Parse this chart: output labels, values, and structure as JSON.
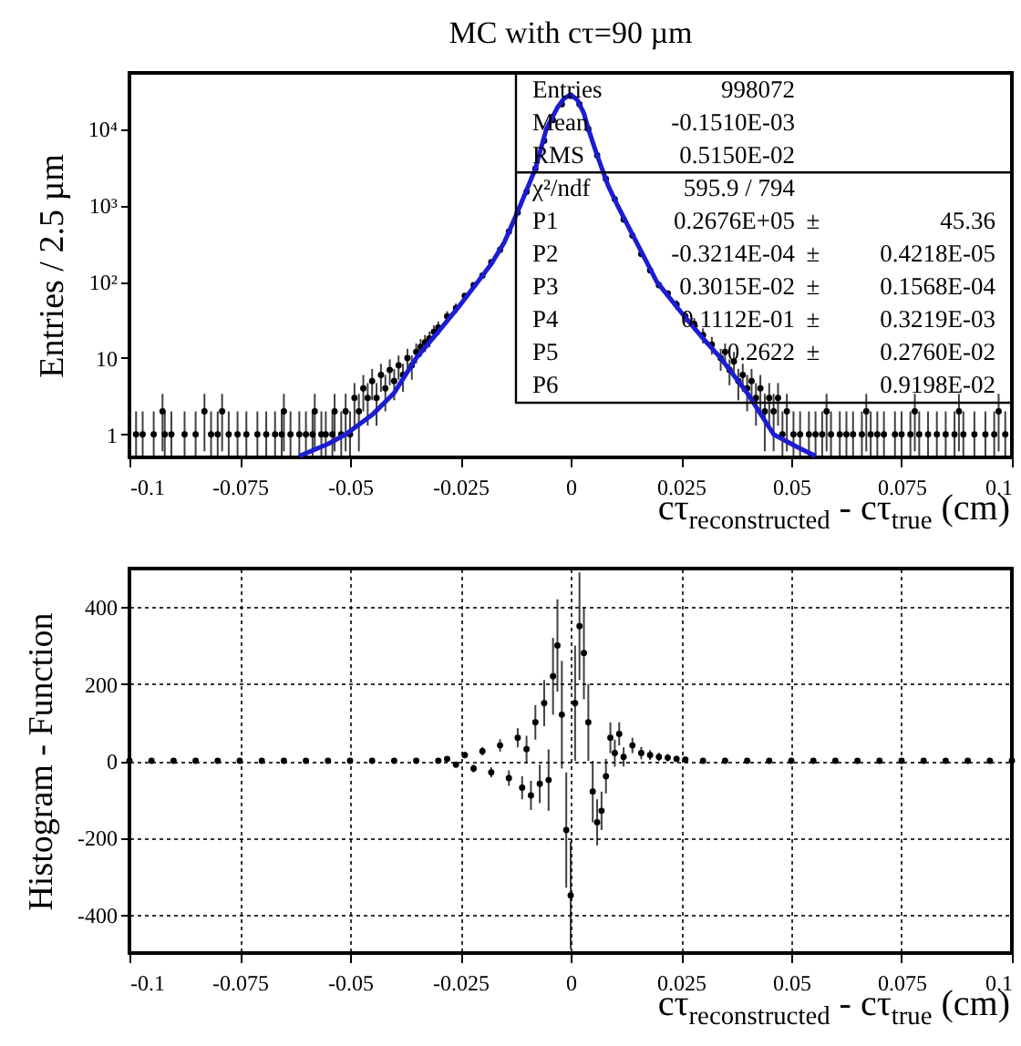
{
  "chart_data": [
    {
      "type": "scatter",
      "title": "MC with cτ=90 µm",
      "xlabel": "cτ$_{reconstructed}$ - cτ$_{true}$ (cm)",
      "ylabel": "Entries / 2.5 µm",
      "log": "y",
      "xlim": [
        -0.1,
        0.1
      ],
      "xticks": [
        -0.1,
        -0.075,
        -0.05,
        -0.025,
        0,
        0.025,
        0.05,
        0.075,
        0.1
      ],
      "ylim": [
        0.5,
        54000
      ],
      "yticks": [
        1,
        10,
        {
          "value": 100,
          "label": "10²"
        },
        {
          "value": 1000,
          "label": "10³"
        },
        {
          "value": 10000,
          "label": "10⁴"
        }
      ],
      "series": [
        {
          "type": "scatter",
          "marker": "circle",
          "color": "#000000",
          "x": [
            -0.0985,
            -0.097,
            -0.0945,
            -0.0925,
            -0.092,
            -0.0905,
            -0.0875,
            -0.085,
            -0.083,
            -0.0815,
            -0.08,
            -0.079,
            -0.0775,
            -0.0755,
            -0.0735,
            -0.071,
            -0.069,
            -0.067,
            -0.0655,
            -0.065,
            -0.0635,
            -0.0615,
            -0.06,
            -0.0585,
            -0.058,
            -0.0565,
            -0.0555,
            -0.054,
            -0.0535,
            -0.052,
            -0.051,
            -0.05,
            -0.049,
            -0.048,
            -0.047,
            -0.046,
            -0.045,
            -0.044,
            -0.043,
            -0.042,
            -0.041,
            -0.04,
            -0.039,
            -0.038,
            -0.037,
            -0.036,
            -0.035,
            -0.034,
            -0.033,
            -0.032,
            -0.031,
            -0.03,
            -0.028,
            -0.026,
            -0.024,
            -0.022,
            -0.02,
            -0.018,
            -0.016,
            -0.014,
            -0.012,
            -0.01,
            -0.008,
            -0.006,
            -0.004,
            -0.002,
            0,
            0.002,
            0.004,
            0.006,
            0.008,
            0.01,
            0.012,
            0.014,
            0.016,
            0.018,
            0.02,
            0.022,
            0.024,
            0.026,
            0.028,
            0.03,
            0.032,
            0.034,
            0.035,
            0.036,
            0.037,
            0.038,
            0.039,
            0.04,
            0.041,
            0.042,
            0.043,
            0.044,
            0.045,
            0.046,
            0.047,
            0.048,
            0.049,
            0.0505,
            0.052,
            0.054,
            0.0555,
            0.057,
            0.058,
            0.059,
            0.061,
            0.0625,
            0.064,
            0.066,
            0.067,
            0.068,
            0.0695,
            0.071,
            0.0735,
            0.075,
            0.077,
            0.078,
            0.079,
            0.081,
            0.083,
            0.085,
            0.087,
            0.088,
            0.089,
            0.0915,
            0.094,
            0.096,
            0.097,
            0.0985
          ],
          "values": [
            1,
            1,
            1,
            2,
            1,
            1,
            1,
            1,
            2,
            1,
            1,
            2,
            1,
            1,
            1,
            1,
            1,
            1,
            1,
            2,
            1,
            1,
            1,
            1,
            2,
            1,
            1,
            1,
            2,
            1,
            2,
            1,
            3,
            2,
            4,
            3,
            5,
            3,
            6,
            4,
            7,
            5,
            8,
            6,
            10,
            8,
            12,
            14,
            16,
            18,
            22,
            25,
            35,
            45,
            65,
            90,
            120,
            180,
            260,
            450,
            800,
            1500,
            3000,
            7000,
            13000,
            21000,
            27000,
            21000,
            10000,
            4500,
            2200,
            1200,
            650,
            400,
            230,
            140,
            90,
            70,
            50,
            35,
            28,
            20,
            15,
            10,
            12,
            7,
            9,
            5,
            6,
            4,
            5,
            3,
            4,
            2,
            3,
            2,
            3,
            1,
            2,
            1,
            1,
            1,
            1,
            1,
            2,
            1,
            1,
            1,
            1,
            1,
            2,
            1,
            1,
            1,
            1,
            1,
            1,
            2,
            1,
            1,
            1,
            1,
            1,
            2,
            1,
            1,
            1,
            1,
            2,
            1
          ],
          "errors": [
            [
              0.5,
              2
            ],
            [
              0.5,
              2
            ],
            [
              0.5,
              2
            ],
            [
              0.6,
              3.4
            ],
            [
              0.5,
              2
            ],
            [
              0.5,
              2
            ],
            [
              0.5,
              2
            ],
            [
              0.5,
              2
            ],
            [
              0.6,
              3.4
            ],
            [
              0.5,
              2
            ],
            [
              0.5,
              2
            ],
            [
              0.6,
              3.4
            ],
            [
              0.5,
              2
            ],
            [
              0.5,
              2
            ],
            [
              0.5,
              2
            ],
            [
              0.5,
              2
            ],
            [
              0.5,
              2
            ],
            [
              0.5,
              2
            ],
            [
              0.5,
              2
            ],
            [
              0.6,
              3.4
            ],
            [
              0.5,
              2
            ],
            [
              0.5,
              2
            ],
            [
              0.5,
              2
            ],
            [
              0.5,
              2
            ],
            [
              0.6,
              3.4
            ],
            [
              0.5,
              2
            ],
            [
              0.5,
              2
            ],
            [
              0.5,
              2
            ],
            [
              0.6,
              3.4
            ],
            [
              0.5,
              2
            ],
            [
              0.6,
              3.4
            ],
            [
              0.5,
              2
            ],
            1.7,
            [
              0.6,
              3.4
            ],
            2,
            1.7,
            2.2,
            1.7,
            2.4,
            2,
            2.6,
            2.2,
            2.8,
            2.4,
            3.2,
            2.8,
            3.5,
            3.7,
            4,
            4.2,
            4.7,
            5,
            5.9,
            6.7,
            null,
            null,
            null,
            null,
            null,
            null,
            null,
            null,
            null,
            null,
            null,
            null,
            null,
            null,
            null,
            null,
            null,
            null,
            null,
            null,
            null,
            null,
            null,
            null,
            7.1,
            5.9,
            5.3,
            4.5,
            3.9,
            3.2,
            3.5,
            2.6,
            3,
            2.2,
            2.4,
            2,
            2.2,
            1.7,
            2,
            [
              0.6,
              3.4
            ],
            1.7,
            [
              0.6,
              3.4
            ],
            1.7,
            [
              0.5,
              2
            ],
            [
              0.6,
              3.4
            ],
            [
              0.5,
              2
            ],
            [
              0.5,
              2
            ],
            [
              0.5,
              2
            ],
            [
              0.5,
              2
            ],
            [
              0.5,
              2
            ],
            [
              0.6,
              3.4
            ],
            [
              0.5,
              2
            ],
            [
              0.5,
              2
            ],
            [
              0.5,
              2
            ],
            [
              0.5,
              2
            ],
            [
              0.5,
              2
            ],
            [
              0.6,
              3.4
            ],
            [
              0.5,
              2
            ],
            [
              0.5,
              2
            ],
            [
              0.5,
              2
            ],
            [
              0.5,
              2
            ],
            [
              0.5,
              2
            ],
            [
              0.5,
              2
            ],
            [
              0.6,
              3.4
            ],
            [
              0.5,
              2
            ],
            [
              0.5,
              2
            ],
            [
              0.5,
              2
            ],
            [
              0.5,
              2
            ],
            [
              0.5,
              2
            ],
            [
              0.6,
              3.4
            ],
            [
              0.5,
              2
            ],
            [
              0.5,
              2
            ],
            [
              0.5,
              2
            ],
            [
              0.5,
              2
            ],
            [
              0.6,
              3.4
            ],
            [
              0.5,
              2
            ]
          ]
        },
        {
          "type": "line",
          "color": "#1c1cd2",
          "x": [
            -0.0615,
            -0.055,
            -0.051,
            -0.045,
            -0.04,
            -0.035,
            -0.03,
            -0.025,
            -0.021,
            -0.018,
            -0.015,
            -0.0114,
            -0.008,
            -0.0055,
            -0.003,
            -0.0015,
            0,
            0.0015,
            0.003,
            0.004,
            0.006,
            0.0085,
            0.0106,
            0.015,
            0.0195,
            0.025,
            0.03,
            0.034,
            0.04,
            0.046,
            0.051,
            0.0555
          ],
          "values": [
            0.52,
            0.75,
            1,
            1.8,
            3.5,
            10,
            22,
            50,
            100,
            170,
            330,
            1000,
            3000,
            10000,
            19000,
            25000,
            28000,
            24000,
            16000,
            10000,
            4500,
            1800,
            1000,
            320,
            100,
            40,
            18,
            10,
            3.5,
            1,
            0.7,
            0.52
          ]
        }
      ],
      "annotations": [
        "Entries",
        "998072",
        "Mean",
        "-0.1510E-03",
        "RMS",
        "0.5150E-02",
        "χ²/ndf",
        "595.9   /  794",
        "P1",
        "0.2676E+05",
        "±",
        "45.36",
        "P2",
        "-0.3214E-04",
        "±",
        "0.4218E-05",
        "P3",
        "0.3015E-02",
        "±",
        "0.1568E-04",
        "P4",
        "0.1112E-01",
        "±",
        "0.3219E-03",
        "P5",
        "0.2622",
        "±",
        "0.2760E-02",
        "P6",
        "0.9198E-02"
      ]
    },
    {
      "type": "scatter",
      "xlabel": "cτ$_{reconstructed}$ - cτ$_{true}$ (cm)",
      "ylabel": "Histogram - Function",
      "grid": true,
      "xlim": [
        -0.1,
        0.1
      ],
      "xticks": [
        -0.1,
        -0.075,
        -0.05,
        -0.025,
        0,
        0.025,
        0.05,
        0.075,
        0.1
      ],
      "ylim": [
        -500,
        500
      ],
      "yticks": [
        -400,
        -200,
        0,
        200,
        400
      ],
      "series": [
        {
          "marker": "circle",
          "color": "#000000",
          "x": [
            -0.1,
            -0.095,
            -0.09,
            -0.085,
            -0.08,
            -0.075,
            -0.07,
            -0.065,
            -0.06,
            -0.055,
            -0.05,
            -0.045,
            -0.04,
            -0.035,
            -0.03,
            -0.028,
            -0.026,
            -0.024,
            -0.022,
            -0.02,
            -0.018,
            -0.016,
            -0.014,
            -0.012,
            -0.011,
            -0.01,
            -0.009,
            -0.008,
            -0.007,
            -0.006,
            -0.005,
            -0.004,
            -0.003,
            -0.002,
            -0.001,
            0,
            0.001,
            0.002,
            0.003,
            0.004,
            0.005,
            0.006,
            0.007,
            0.008,
            0.009,
            0.01,
            0.011,
            0.012,
            0.014,
            0.016,
            0.018,
            0.02,
            0.022,
            0.024,
            0.026,
            0.03,
            0.035,
            0.04,
            0.045,
            0.05,
            0.055,
            0.06,
            0.065,
            0.07,
            0.075,
            0.08,
            0.085,
            0.09,
            0.095,
            0.1
          ],
          "values": [
            0,
            0,
            0,
            0,
            0,
            0,
            0,
            0,
            0,
            0,
            0,
            0,
            0,
            0,
            0,
            5,
            -10,
            15,
            -20,
            25,
            -30,
            40,
            -45,
            60,
            -70,
            30,
            -90,
            100,
            -60,
            150,
            -50,
            220,
            300,
            120,
            -180,
            -350,
            150,
            350,
            280,
            100,
            -80,
            -160,
            -130,
            -40,
            60,
            20,
            70,
            10,
            40,
            20,
            15,
            10,
            8,
            5,
            3,
            0,
            0,
            0,
            0,
            0,
            0,
            0,
            0,
            0,
            0,
            0,
            0,
            0,
            0,
            0
          ],
          "errors": [
            2,
            2,
            2,
            2,
            2,
            2,
            2,
            2,
            2,
            2,
            2,
            2,
            2,
            2,
            2,
            5,
            7,
            8,
            10,
            11,
            13,
            16,
            20,
            25,
            30,
            35,
            38,
            45,
            50,
            60,
            80,
            100,
            120,
            140,
            150,
            140,
            150,
            140,
            120,
            100,
            80,
            60,
            50,
            45,
            40,
            35,
            30,
            25,
            20,
            16,
            13,
            11,
            10,
            8,
            7,
            2,
            2,
            2,
            2,
            2,
            2,
            2,
            2,
            2,
            2,
            2,
            2,
            2,
            2,
            2
          ]
        }
      ]
    }
  ]
}
